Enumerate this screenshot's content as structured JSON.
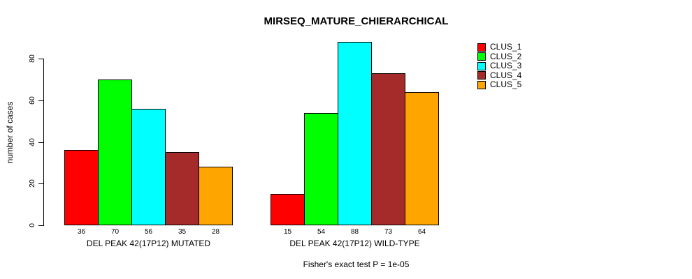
{
  "chart_data": {
    "type": "bar",
    "title": "MIRSEQ_MATURE_CHIERARCHICAL",
    "ylabel": "number of cases",
    "xlabel": "",
    "caption": "Fisher's exact test P = 1e-05",
    "ylim": [
      0,
      88
    ],
    "yticks": [
      0,
      20,
      40,
      60,
      80
    ],
    "grid": false,
    "legend_position": "top-right-outside",
    "categories": [
      "DEL PEAK 42(17P12) MUTATED",
      "DEL PEAK 42(17P12) WILD-TYPE"
    ],
    "series": [
      {
        "name": "CLUS_1",
        "color": "#FF0000",
        "values": [
          36,
          15
        ]
      },
      {
        "name": "CLUS_2",
        "color": "#00FF00",
        "values": [
          70,
          54
        ]
      },
      {
        "name": "CLUS_3",
        "color": "#00FFFF",
        "values": [
          56,
          88
        ]
      },
      {
        "name": "CLUS_4",
        "color": "#A52A2A",
        "values": [
          35,
          73
        ]
      },
      {
        "name": "CLUS_5",
        "color": "#FFA500",
        "values": [
          28,
          64
        ]
      }
    ],
    "bar_value_labels": [
      [
        36,
        70,
        56,
        35,
        28
      ],
      [
        15,
        54,
        88,
        73,
        64
      ]
    ]
  }
}
